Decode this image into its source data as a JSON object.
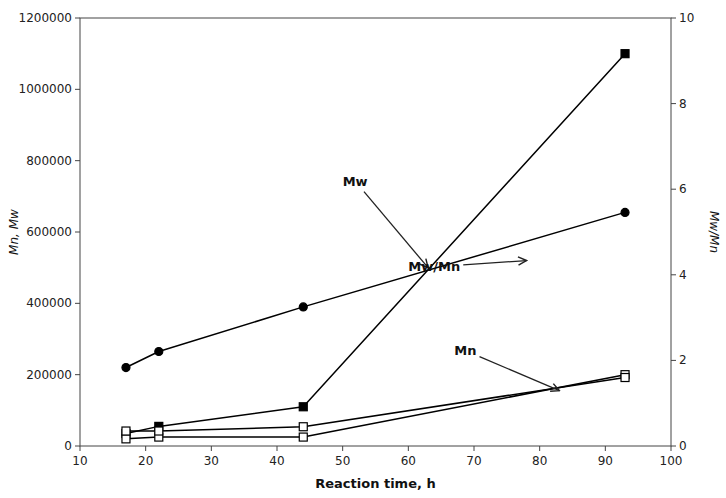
{
  "chart_data": {
    "type": "line",
    "xlabel": "Reaction time, h",
    "ylabel": "Mn, Mw",
    "y2label": "Mw/Mn",
    "x": [
      17,
      22,
      44,
      93
    ],
    "series": [
      {
        "color": "black",
        "marker": "circle",
        "values": [
          220000,
          265000,
          390000,
          655000
        ]
      },
      {
        "color": "black",
        "marker": "square",
        "values": [
          35000,
          55000,
          110000,
          1100000
        ]
      },
      {
        "color": "black",
        "marker": "square-open",
        "values": [
          20000,
          25000,
          25000,
          200000
        ]
      },
      {
        "color": "black",
        "marker": "square-open",
        "axis": "y2",
        "values": [
          0.35,
          0.35,
          0.45,
          1.6
        ]
      }
    ],
    "xlim": [
      10,
      100
    ],
    "ylim": [
      0,
      1200000
    ],
    "y2lim": [
      0,
      10
    ],
    "xticks": [
      10,
      20,
      30,
      40,
      50,
      60,
      70,
      80,
      90,
      100
    ],
    "yticks": [
      0,
      200000,
      400000,
      600000,
      800000,
      1000000,
      1200000
    ],
    "y2ticks": [
      0,
      2,
      4,
      6,
      8,
      10
    ],
    "grid": false,
    "annotations": [
      {
        "text": "Mw",
        "x": 63,
        "y": 500000,
        "text_x": 50,
        "text_y": 730000
      },
      {
        "text": "Mw/Mn",
        "x": 78,
        "y": 520000,
        "text_x": 60,
        "text_y": 490000
      },
      {
        "text": "Mn",
        "x": 83,
        "y": 155000,
        "text_x": 67,
        "text_y": 255000
      }
    ]
  }
}
